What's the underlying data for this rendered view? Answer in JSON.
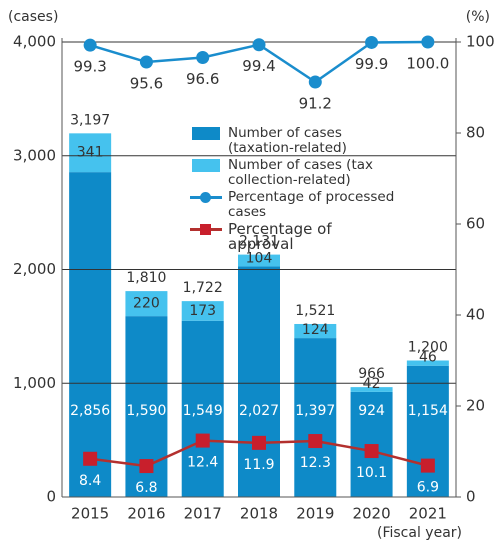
{
  "chart_data": {
    "type": "bar",
    "stacked": true,
    "y_label": "(cases)",
    "y2_label": "(%)",
    "x_label": "(Fiscal year)",
    "categories": [
      "2015",
      "2016",
      "2017",
      "2018",
      "2019",
      "2020",
      "2021"
    ],
    "ylim": [
      0,
      4000
    ],
    "yticks": [
      0,
      {
        "value": 1000,
        "label": "1,000"
      },
      {
        "value": 2000,
        "label": "2,000"
      },
      {
        "value": 3000,
        "label": "3,000"
      },
      {
        "value": 4000,
        "label": "4,000"
      }
    ],
    "y2lim": [
      0,
      100
    ],
    "y2ticks": [
      0,
      20,
      40,
      60,
      80,
      100
    ],
    "grid": true,
    "series": [
      {
        "name": "Number of cases (taxation-related)",
        "type": "bar",
        "color": "#0e8ac8",
        "values": [
          2856,
          1590,
          1549,
          2027,
          1397,
          924,
          1154
        ],
        "value_labels": [
          "2,856",
          "1,590",
          "1,549",
          "2,027",
          "1,397",
          "924",
          "1,154"
        ]
      },
      {
        "name": "Number of cases (tax collection-related)",
        "type": "bar",
        "color": "#45c2ee",
        "values": [
          341,
          220,
          173,
          104,
          124,
          42,
          46
        ]
      },
      {
        "name": "Percentage of processed cases",
        "type": "line",
        "axis": "y2",
        "color": "#1a8dcd",
        "marker": "circle",
        "values": [
          99.3,
          95.6,
          96.6,
          99.4,
          91.2,
          99.9,
          100.0
        ],
        "value_labels": [
          "99.3",
          "95.6",
          "96.6",
          "99.4",
          "91.2",
          "99.9",
          "100.0"
        ]
      },
      {
        "name": "Percentage of approval",
        "type": "line",
        "axis": "y2",
        "color": "#b3302e",
        "marker": "square",
        "values": [
          8.4,
          6.8,
          12.4,
          11.9,
          12.3,
          10.1,
          6.9
        ]
      }
    ],
    "total_labels": [
      "3,197",
      "1,810",
      "1,722",
      "2,131",
      "1,521",
      "966",
      "1,200"
    ]
  }
}
